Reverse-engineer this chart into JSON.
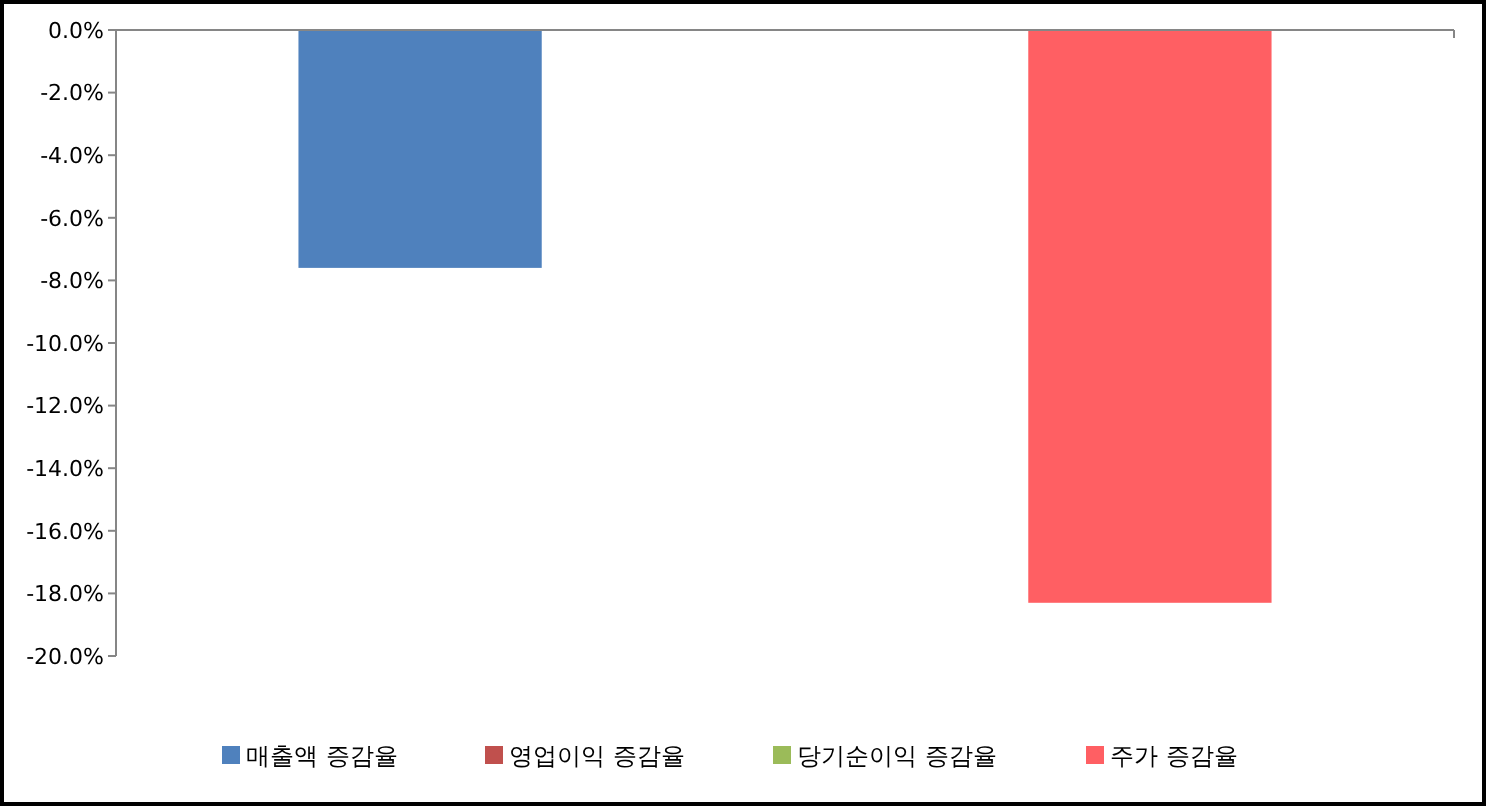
{
  "chart_data": {
    "type": "bar",
    "categories": [
      null
    ],
    "series": [
      {
        "name": "매출액 증감율",
        "color": "#4f81bd",
        "values": [
          -7.6
        ]
      },
      {
        "name": "영업이익 증감율",
        "color": "#c0504d",
        "values": [
          null
        ]
      },
      {
        "name": "당기순이익 증감율",
        "color": "#9bbb59",
        "values": [
          null
        ]
      },
      {
        "name": "주가 증감율",
        "color": "#ff5f63",
        "values": [
          -18.3
        ]
      }
    ],
    "ylim": [
      -20,
      0
    ],
    "yticks": [
      {
        "value": 0,
        "label": "0.0%"
      },
      {
        "value": -2,
        "label": "-2.0%"
      },
      {
        "value": -4,
        "label": "-4.0%"
      },
      {
        "value": -6,
        "label": "-6.0%"
      },
      {
        "value": -8,
        "label": "-8.0%"
      },
      {
        "value": -10,
        "label": "-10.0%"
      },
      {
        "value": -12,
        "label": "-12.0%"
      },
      {
        "value": -14,
        "label": "-14.0%"
      },
      {
        "value": -16,
        "label": "-16.0%"
      },
      {
        "value": -18,
        "label": "-18.0%"
      },
      {
        "value": -20,
        "label": "-20.0%"
      }
    ],
    "grid": false,
    "legend": "bottom"
  }
}
